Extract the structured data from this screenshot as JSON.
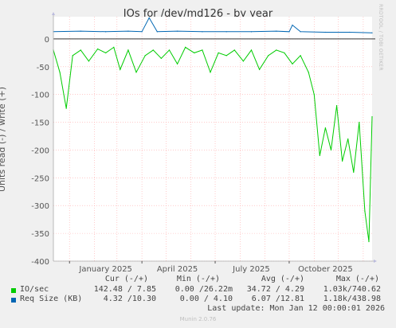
{
  "title": "IOs for /dev/md126 - by year",
  "side_label": "RRDTOOL / TOBI OETIKER",
  "footer": "Munin 2.0.76",
  "colors": {
    "io": "#00cc00",
    "req": "#0066b3",
    "grid": "#ffaaaa",
    "axis": "#333333"
  },
  "legend": {
    "headers": [
      "Cur (-/+)",
      "Min (-/+)",
      "Avg (-/+)",
      "Max (-/+)"
    ],
    "rows": [
      {
        "name": "IO/sec",
        "color": "#00cc00",
        "cur": "142.48 / 7.85",
        "min": "0.00 /26.22m",
        "avg": "34.72 / 4.29",
        "max": "1.03k/740.62"
      },
      {
        "name": "Req Size (KB)",
        "color": "#0066b3",
        "cur": "4.32 /10.30",
        "min": "0.00 / 4.10",
        "avg": "6.07 /12.81",
        "max": "1.18k/438.98"
      }
    ],
    "last_update": "Last update: Mon Jan 12 00:00:01 2026"
  },
  "chart_data": {
    "type": "line",
    "title": "IOs for /dev/md126 - by year",
    "ylabel": "Units read (-) / write (+)",
    "xlabel": "",
    "ylim": [
      -400,
      40
    ],
    "yticks": [
      0,
      -50,
      -100,
      -150,
      -200,
      -250,
      -300,
      -350,
      -400
    ],
    "xticks": [
      "January 2025",
      "April 2025",
      "July 2025",
      "October 2025"
    ],
    "x_range": [
      "2024-12-12",
      "2026-01-12"
    ],
    "grid": true,
    "series": [
      {
        "name": "IO/sec",
        "color": "#00cc00",
        "x": [
          "2024-12-12",
          "2024-12-20",
          "2024-12-28",
          "2025-01-05",
          "2025-01-15",
          "2025-01-25",
          "2025-02-05",
          "2025-02-15",
          "2025-02-25",
          "2025-03-05",
          "2025-03-15",
          "2025-03-25",
          "2025-04-05",
          "2025-04-15",
          "2025-04-25",
          "2025-05-05",
          "2025-05-15",
          "2025-05-25",
          "2025-06-05",
          "2025-06-15",
          "2025-06-25",
          "2025-07-05",
          "2025-07-15",
          "2025-07-25",
          "2025-08-05",
          "2025-08-15",
          "2025-08-25",
          "2025-09-05",
          "2025-09-15",
          "2025-09-25",
          "2025-10-05",
          "2025-10-15",
          "2025-10-25",
          "2025-11-01",
          "2025-11-08",
          "2025-11-15",
          "2025-11-22",
          "2025-11-29",
          "2025-12-06",
          "2025-12-13",
          "2025-12-20",
          "2025-12-27",
          "2026-01-03",
          "2026-01-08",
          "2026-01-12"
        ],
        "y": [
          -20,
          -60,
          -125,
          -30,
          -20,
          -40,
          -18,
          -25,
          -15,
          -55,
          -20,
          -60,
          -30,
          -20,
          -35,
          -20,
          -45,
          -15,
          -25,
          -20,
          -60,
          -25,
          -30,
          -20,
          -40,
          -20,
          -55,
          -30,
          -20,
          -25,
          -45,
          -30,
          -60,
          -100,
          -210,
          -160,
          -200,
          -120,
          -220,
          -180,
          -240,
          -150,
          -310,
          -365,
          -140
        ]
      },
      {
        "name": "Req Size (KB)",
        "color": "#0066b3",
        "x": [
          "2024-12-12",
          "2025-01-15",
          "2025-02-15",
          "2025-03-15",
          "2025-04-01",
          "2025-04-10",
          "2025-04-20",
          "2025-05-15",
          "2025-06-15",
          "2025-07-15",
          "2025-08-15",
          "2025-09-15",
          "2025-10-01",
          "2025-10-05",
          "2025-10-15",
          "2025-11-15",
          "2025-12-15",
          "2026-01-12"
        ],
        "y": [
          13,
          14,
          13,
          14,
          13,
          38,
          13,
          14,
          13,
          13,
          13,
          14,
          13,
          25,
          13,
          12,
          12,
          11
        ]
      }
    ]
  }
}
